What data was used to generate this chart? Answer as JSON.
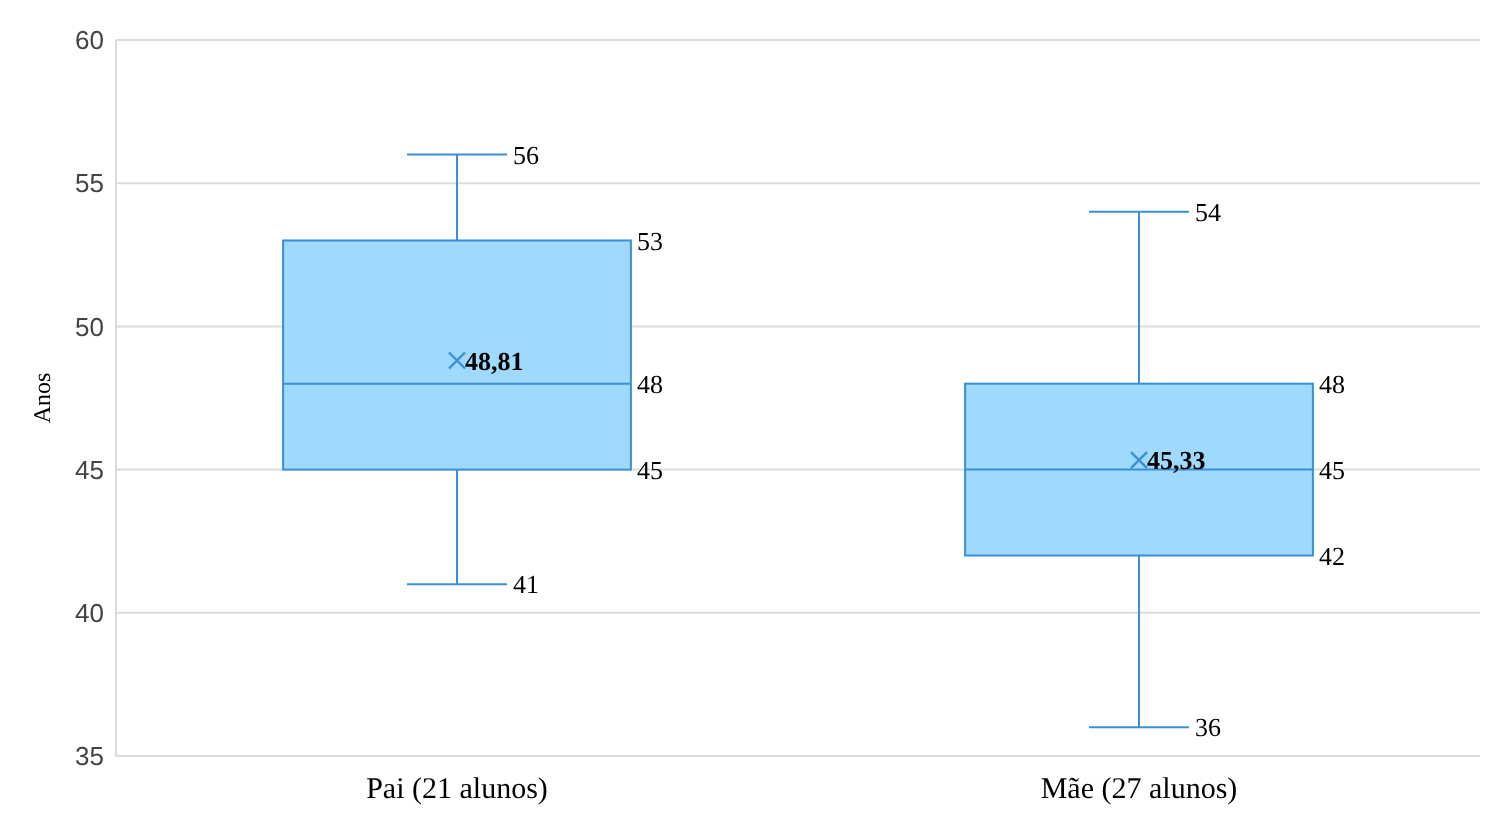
{
  "chart_data": {
    "type": "box",
    "ylabel": "Anos",
    "categories": [
      "Pai (21 alunos)",
      "Mãe (27 alunos)"
    ],
    "boxes": [
      {
        "low": 41,
        "q1": 45,
        "median": 48,
        "q3": 53,
        "high": 56,
        "mean": 48.81
      },
      {
        "low": 36,
        "q1": 42,
        "median": 45,
        "q3": 48,
        "high": 54,
        "mean": 45.33
      }
    ],
    "color": "#9fd9fb",
    "ylim": [
      35,
      60
    ],
    "yticks": [
      35,
      40,
      45,
      50,
      55,
      60
    ],
    "grid": "y",
    "marker": "cross",
    "value_labels": [
      [
        "56",
        "53",
        "48",
        "45",
        "41",
        "48,81"
      ],
      [
        "54",
        "48",
        "45",
        "42",
        "36",
        "45,33"
      ]
    ]
  }
}
